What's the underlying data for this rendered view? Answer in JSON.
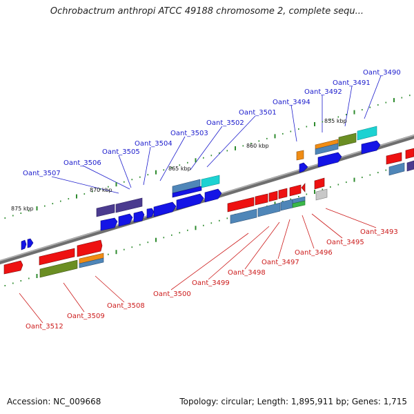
{
  "title": "Ochrobactrum anthropi ATCC 49188 chromosome 2, complete sequ...",
  "footer": {
    "accession": "Accession: NC_009668",
    "summary": "Topology: circular; Length: 1,895,911 bp; Genes: 1,715"
  },
  "scale": {
    "kbp_labels": [
      "875 kbp",
      "870 kbp",
      "865 kbp",
      "860 kbp",
      "855 kbp"
    ]
  },
  "genes_top": [
    "Oant_3507",
    "Oant_3506",
    "Oant_3505",
    "Oant_3504",
    "Oant_3503",
    "Oant_3502",
    "Oant_3501",
    "Oant_3494",
    "Oant_3492",
    "Oant_3491",
    "Oant_3490"
  ],
  "genes_bottom": [
    "Oant_3512",
    "Oant_3509",
    "Oant_3508",
    "Oant_3500",
    "Oant_3499",
    "Oant_3498",
    "Oant_3497",
    "Oant_3496",
    "Oant_3495",
    "Oant_3493"
  ],
  "colors": {
    "backbone": "#8a8a8a",
    "top_label": "#1a1acc",
    "bottom_label": "#cc1a1a",
    "tick": "#2e8b2e",
    "gene_blue": "#1414e6",
    "gene_red": "#ee1111",
    "gene_olive": "#6b8e23",
    "gene_steel": "#4f86b8",
    "gene_purple": "#4b3b8f",
    "gene_cyan": "#1cd2d2",
    "gene_orange": "#f08c14",
    "gene_green": "#3ab84a",
    "gene_gray": "#c8c8c8"
  }
}
